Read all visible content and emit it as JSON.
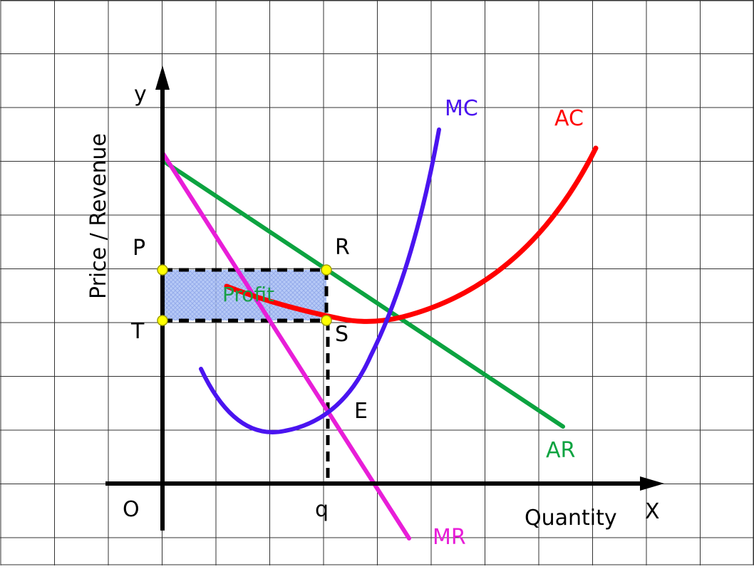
{
  "colors": {
    "background": "#ffffff",
    "grid": "#333333",
    "axis": "#000000",
    "ar": "#0ca340",
    "mr": "#e81ed8",
    "mc": "#4a14f0",
    "ac": "#ff0000",
    "profit_fill": "#9fb6f2",
    "profit_label": "#18a048",
    "point_fill": "#ffff00",
    "point_stroke": "#a0a000"
  },
  "axes": {
    "y_symbol": "y",
    "x_symbol": "X",
    "origin": "O",
    "y_title": "Price / Revenue",
    "x_title": "Quantity"
  },
  "curves": {
    "mc": "MC",
    "ac": "AC",
    "ar": "AR",
    "mr": "MR"
  },
  "points": {
    "p": "P",
    "t": "T",
    "r": "R",
    "s": "S",
    "e": "E",
    "q": "q"
  },
  "area": {
    "label": "Profit"
  }
}
